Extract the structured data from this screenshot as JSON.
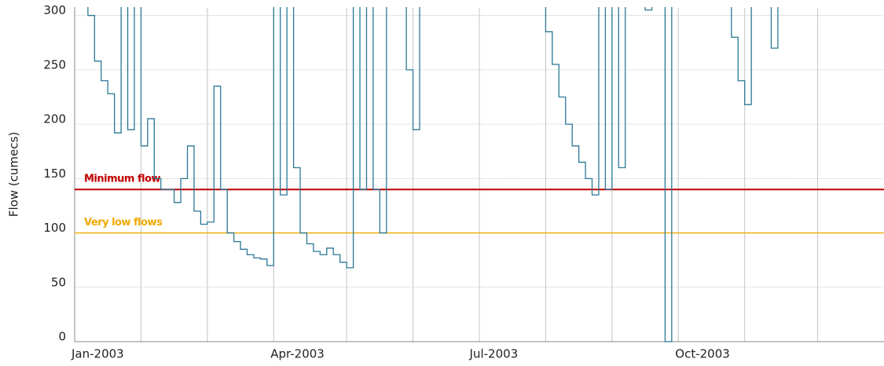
{
  "chart_data": {
    "type": "step-line",
    "y_label": "Flow (cumecs)",
    "categories": [
      "Jan-2003",
      null,
      null,
      null,
      null,
      null,
      null,
      null,
      null,
      null,
      null,
      null,
      null,
      null,
      null,
      null,
      null,
      null,
      null,
      null,
      null,
      null,
      null,
      null,
      null,
      null,
      null,
      null,
      null,
      null,
      "Apr-2003",
      null,
      null,
      null,
      null,
      null,
      null,
      null,
      null,
      null,
      null,
      null,
      null,
      null,
      null,
      null,
      null,
      null,
      null,
      null,
      null,
      null,
      null,
      null,
      null,
      null,
      null,
      null,
      null,
      null,
      "Jul-2003",
      null,
      null,
      null,
      null,
      null,
      null,
      null,
      null,
      null,
      null,
      null,
      null,
      null,
      null,
      null,
      null,
      null,
      null,
      null,
      null,
      null,
      null,
      null,
      null,
      null,
      null,
      null,
      null,
      null,
      null,
      "Oct-2003",
      null,
      null,
      null,
      null,
      null,
      null,
      null,
      null,
      null,
      null,
      null,
      null,
      null,
      null,
      null,
      null,
      null,
      null,
      null,
      null,
      null,
      null,
      null,
      null,
      null,
      null,
      null,
      null,
      null,
      null
    ],
    "values": [
      310,
      310,
      300,
      258,
      240,
      228,
      192,
      310,
      195,
      310,
      180,
      205,
      150,
      140,
      140,
      128,
      150,
      180,
      120,
      108,
      110,
      235,
      140,
      100,
      92,
      85,
      80,
      77,
      76,
      70,
      310,
      135,
      310,
      160,
      100,
      90,
      83,
      80,
      86,
      80,
      73,
      68,
      310,
      140,
      310,
      140,
      100,
      310,
      310,
      310,
      250,
      195,
      310,
      310,
      310,
      310,
      310,
      310,
      310,
      310,
      310,
      310,
      310,
      310,
      310,
      310,
      310,
      310,
      310,
      310,
      310,
      285,
      255,
      225,
      200,
      180,
      165,
      150,
      135,
      310,
      140,
      310,
      160,
      310,
      310,
      310,
      305,
      310,
      310,
      0,
      310,
      310,
      310,
      310,
      310,
      310,
      310,
      310,
      310,
      280,
      240,
      218,
      310,
      310,
      310,
      270,
      310,
      310,
      310,
      310,
      310,
      310,
      310,
      310,
      310,
      310,
      310,
      310,
      310,
      310,
      310,
      310
    ],
    "color": "#2b7896",
    "reference_lines": [
      {
        "label": "Minimum flow",
        "value": 140,
        "color": "#c00000"
      },
      {
        "label": "Very low flows",
        "value": 100,
        "color": "#f2a900"
      }
    ],
    "ylim": [
      0,
      307
    ],
    "yticks": [
      0,
      50,
      100,
      150,
      200,
      250,
      300
    ],
    "grid": true
  }
}
